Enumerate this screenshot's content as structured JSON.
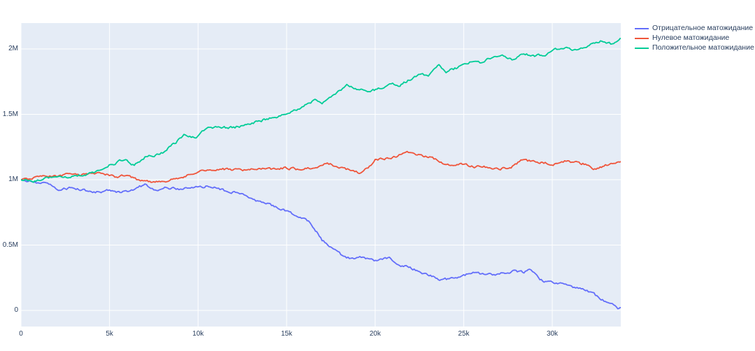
{
  "figure": {
    "background_color": "#ffffff",
    "plot_background_color": "#e5ecf6",
    "grid_color": "#ffffff",
    "tick_text_color": "#2a3f5f"
  },
  "chart_data": {
    "type": "line",
    "title": "",
    "xlabel": "",
    "ylabel": "",
    "grid": true,
    "legend_position": "outside-top-right",
    "x_units": "thousands (k)",
    "y_units": "millions (M)",
    "xlim_k": [
      0,
      33.9
    ],
    "ylim_m": [
      -0.12,
      2.2
    ],
    "xticks": {
      "values_k": [
        0,
        5,
        10,
        15,
        20,
        25,
        30
      ],
      "labels": [
        "0",
        "5k",
        "10k",
        "15k",
        "20k",
        "25k",
        "30k"
      ]
    },
    "yticks": {
      "values_m": [
        0,
        0.5,
        1,
        1.5,
        2
      ],
      "labels": [
        "0",
        "0.5M",
        "1M",
        "1.5M",
        "2M"
      ]
    },
    "series": [
      {
        "name": "Отрицательное матожидание",
        "color": "#636efa",
        "points_k_m": [
          [
            0,
            1.0
          ],
          [
            0.8,
            0.98
          ],
          [
            1.5,
            0.97
          ],
          [
            2.2,
            0.92
          ],
          [
            2.8,
            0.94
          ],
          [
            3.5,
            0.92
          ],
          [
            4.2,
            0.9
          ],
          [
            5,
            0.92
          ],
          [
            5.6,
            0.9
          ],
          [
            6.4,
            0.93
          ],
          [
            7,
            0.96
          ],
          [
            7.5,
            0.92
          ],
          [
            8.2,
            0.94
          ],
          [
            9,
            0.93
          ],
          [
            9.8,
            0.94
          ],
          [
            10.6,
            0.95
          ],
          [
            11.4,
            0.92
          ],
          [
            12.2,
            0.9
          ],
          [
            13.1,
            0.85
          ],
          [
            14,
            0.81
          ],
          [
            14.6,
            0.78
          ],
          [
            15.3,
            0.74
          ],
          [
            16,
            0.7
          ],
          [
            16.4,
            0.66
          ],
          [
            17,
            0.54
          ],
          [
            17.4,
            0.5
          ],
          [
            17.9,
            0.44
          ],
          [
            18.3,
            0.41
          ],
          [
            18.8,
            0.39
          ],
          [
            19.3,
            0.41
          ],
          [
            20.1,
            0.38
          ],
          [
            20.8,
            0.4
          ],
          [
            21.3,
            0.35
          ],
          [
            21.9,
            0.33
          ],
          [
            22.5,
            0.3
          ],
          [
            23.2,
            0.26
          ],
          [
            23.8,
            0.23
          ],
          [
            24.4,
            0.25
          ],
          [
            25,
            0.27
          ],
          [
            25.6,
            0.29
          ],
          [
            26.3,
            0.27
          ],
          [
            27.1,
            0.28
          ],
          [
            27.8,
            0.3
          ],
          [
            28.4,
            0.29
          ],
          [
            28.8,
            0.31
          ],
          [
            29.3,
            0.23
          ],
          [
            30,
            0.21
          ],
          [
            30.6,
            0.21
          ],
          [
            31,
            0.19
          ],
          [
            31.4,
            0.17
          ],
          [
            31.8,
            0.16
          ],
          [
            32.2,
            0.14
          ],
          [
            32.6,
            0.1
          ],
          [
            33,
            0.07
          ],
          [
            33.4,
            0.04
          ],
          [
            33.7,
            0.01
          ],
          [
            33.9,
            0.02
          ]
        ]
      },
      {
        "name": "Нулевое матожидание",
        "color": "#ef553b",
        "points_k_m": [
          [
            0,
            1.0
          ],
          [
            0.7,
            1.01
          ],
          [
            1.4,
            1.03
          ],
          [
            2,
            1.02
          ],
          [
            2.6,
            1.04
          ],
          [
            3.3,
            1.03
          ],
          [
            4,
            1.05
          ],
          [
            4.6,
            1.05
          ],
          [
            5.3,
            1.02
          ],
          [
            6,
            1.03
          ],
          [
            6.6,
            1.0
          ],
          [
            7.2,
            0.99
          ],
          [
            7.8,
            0.98
          ],
          [
            8.4,
            0.99
          ],
          [
            9,
            1.02
          ],
          [
            9.6,
            1.04
          ],
          [
            10.2,
            1.07
          ],
          [
            11,
            1.08
          ],
          [
            11.8,
            1.08
          ],
          [
            12.6,
            1.07
          ],
          [
            13.4,
            1.08
          ],
          [
            14.2,
            1.08
          ],
          [
            15,
            1.09
          ],
          [
            15.6,
            1.08
          ],
          [
            16.2,
            1.09
          ],
          [
            16.8,
            1.1
          ],
          [
            17.3,
            1.13
          ],
          [
            17.8,
            1.1
          ],
          [
            18.6,
            1.07
          ],
          [
            19.1,
            1.05
          ],
          [
            19.6,
            1.09
          ],
          [
            20,
            1.15
          ],
          [
            20.6,
            1.16
          ],
          [
            21.2,
            1.18
          ],
          [
            21.8,
            1.21
          ],
          [
            22.3,
            1.19
          ],
          [
            23,
            1.18
          ],
          [
            23.8,
            1.13
          ],
          [
            24.4,
            1.11
          ],
          [
            25,
            1.12
          ],
          [
            25.6,
            1.1
          ],
          [
            26.3,
            1.1
          ],
          [
            27,
            1.08
          ],
          [
            27.6,
            1.09
          ],
          [
            28.3,
            1.15
          ],
          [
            29,
            1.14
          ],
          [
            29.6,
            1.13
          ],
          [
            30.2,
            1.12
          ],
          [
            30.7,
            1.14
          ],
          [
            31.2,
            1.13
          ],
          [
            31.8,
            1.12
          ],
          [
            32.4,
            1.08
          ],
          [
            33,
            1.11
          ],
          [
            33.4,
            1.13
          ],
          [
            33.9,
            1.14
          ]
        ]
      },
      {
        "name": "Положительное матожидание",
        "color": "#00cc96",
        "points_k_m": [
          [
            0,
            1.0
          ],
          [
            0.7,
            0.99
          ],
          [
            1.4,
            1.01
          ],
          [
            2.1,
            1.03
          ],
          [
            2.8,
            1.02
          ],
          [
            3.5,
            1.04
          ],
          [
            4.1,
            1.05
          ],
          [
            4.9,
            1.11
          ],
          [
            5.4,
            1.13
          ],
          [
            5.9,
            1.16
          ],
          [
            6.4,
            1.11
          ],
          [
            7,
            1.17
          ],
          [
            7.6,
            1.19
          ],
          [
            8,
            1.21
          ],
          [
            8.6,
            1.27
          ],
          [
            9.2,
            1.34
          ],
          [
            9.7,
            1.33
          ],
          [
            9.9,
            1.32
          ],
          [
            10.4,
            1.39
          ],
          [
            10.9,
            1.4
          ],
          [
            11.4,
            1.4
          ],
          [
            12,
            1.4
          ],
          [
            12.5,
            1.41
          ],
          [
            13.2,
            1.44
          ],
          [
            13.8,
            1.46
          ],
          [
            14.5,
            1.48
          ],
          [
            15.1,
            1.51
          ],
          [
            15.8,
            1.55
          ],
          [
            16.6,
            1.61
          ],
          [
            17,
            1.59
          ],
          [
            17.5,
            1.63
          ],
          [
            18,
            1.68
          ],
          [
            18.4,
            1.72
          ],
          [
            18.8,
            1.7
          ],
          [
            19.2,
            1.69
          ],
          [
            19.8,
            1.68
          ],
          [
            20.4,
            1.7
          ],
          [
            20.9,
            1.74
          ],
          [
            21.4,
            1.72
          ],
          [
            22,
            1.77
          ],
          [
            22.6,
            1.82
          ],
          [
            23,
            1.79
          ],
          [
            23.6,
            1.88
          ],
          [
            24,
            1.83
          ],
          [
            24.5,
            1.85
          ],
          [
            25.1,
            1.88
          ],
          [
            25.5,
            1.91
          ],
          [
            26,
            1.89
          ],
          [
            26.5,
            1.93
          ],
          [
            27.1,
            1.95
          ],
          [
            27.8,
            1.92
          ],
          [
            28.4,
            1.96
          ],
          [
            29,
            1.95
          ],
          [
            29.6,
            1.96
          ],
          [
            30.1,
            2.0
          ],
          [
            30.8,
            2.01
          ],
          [
            31.2,
            1.99
          ],
          [
            31.7,
            2.01
          ],
          [
            32.4,
            2.05
          ],
          [
            32.8,
            2.06
          ],
          [
            33.3,
            2.04
          ],
          [
            33.7,
            2.07
          ],
          [
            33.9,
            2.08
          ]
        ]
      }
    ]
  }
}
